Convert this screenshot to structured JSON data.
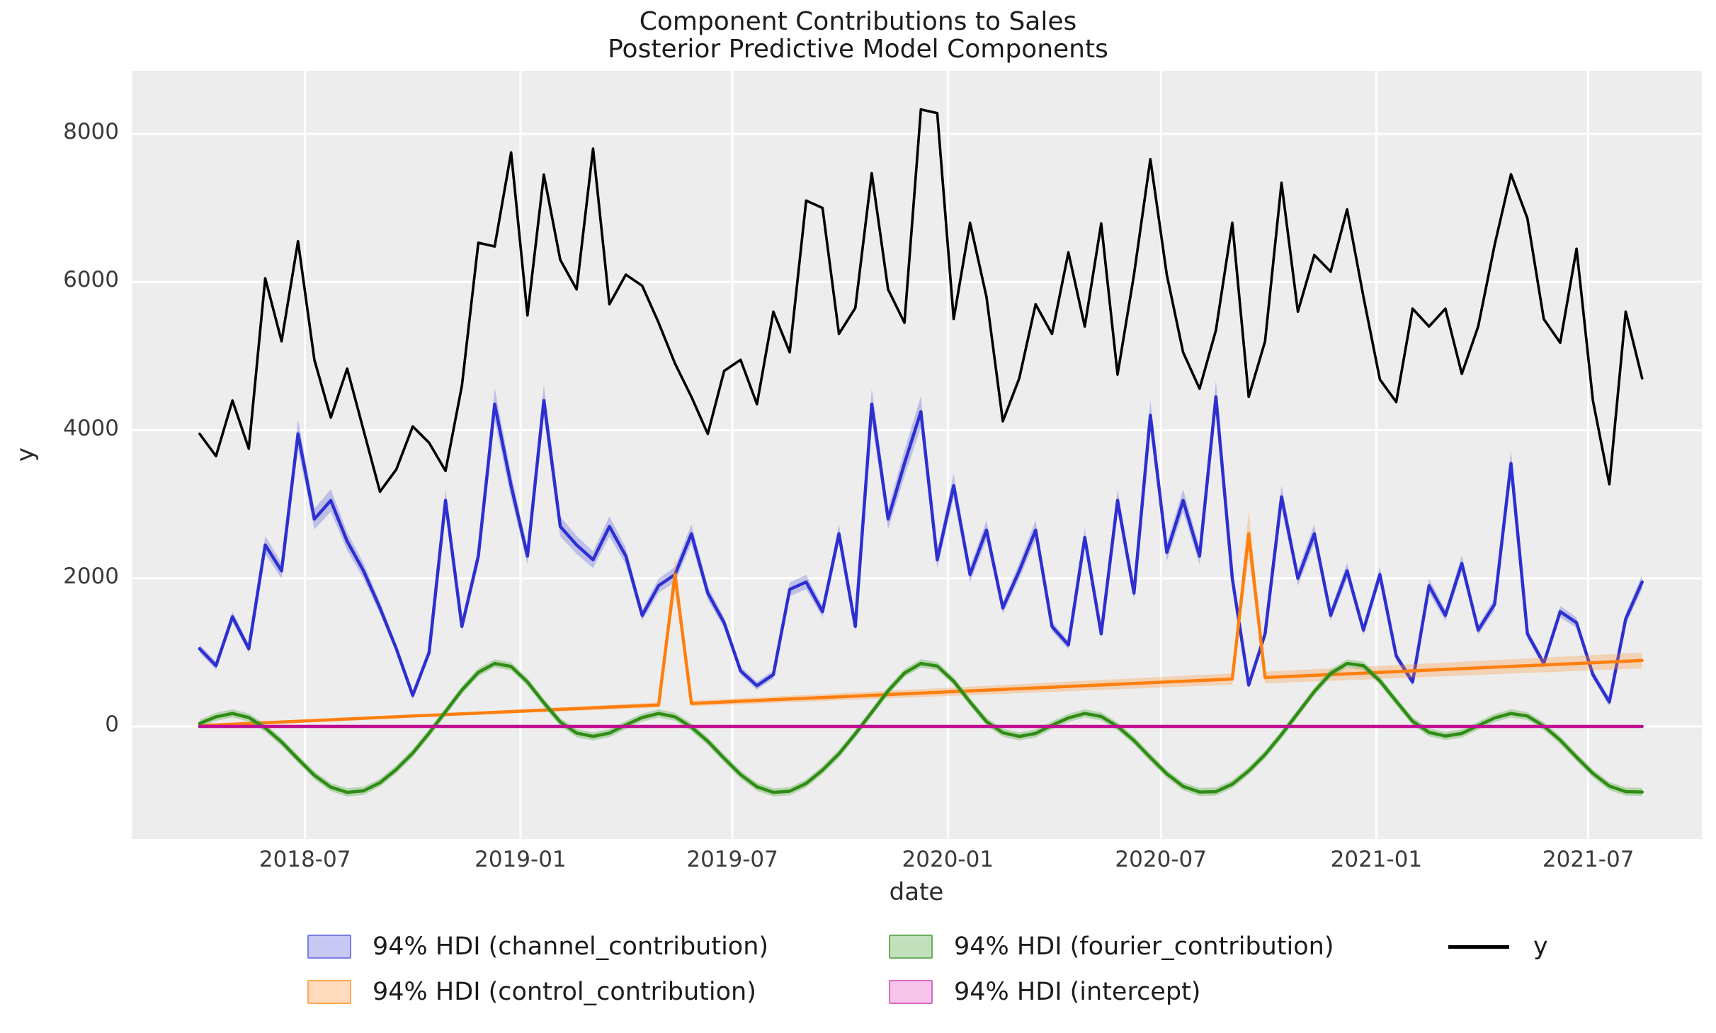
{
  "title": {
    "line1": "Component Contributions to Sales",
    "line2": "Posterior Predictive Model Components"
  },
  "axes": {
    "xlabel": "date",
    "ylabel": "y"
  },
  "colors": {
    "figure_background": "#ffffff",
    "plot_background": "#ededed",
    "gridline": "#ffffff",
    "y_line": "#000000",
    "channel_line": "#2d2fd1",
    "control_line": "#ff7f0e",
    "fourier_line": "#2f8c14",
    "intercept_line": "#c00d92",
    "text": "#1c1c1c"
  },
  "legend": {
    "entries": [
      {
        "label": "94% HDI (channel_contribution)",
        "marker": "patch",
        "fill": "rgba(80,85,220,0.32)",
        "edge": "rgba(80,85,220,0.65)"
      },
      {
        "label": "94% HDI (fourier_contribution)",
        "marker": "patch",
        "fill": "rgba(80,165,60,0.35)",
        "edge": "rgba(60,150,40,0.65)"
      },
      {
        "label": "y",
        "marker": "line",
        "color": "#000000"
      },
      {
        "label": "94% HDI (control_contribution)",
        "marker": "patch",
        "fill": "rgba(255,145,50,0.32)",
        "edge": "rgba(255,140,30,0.65)"
      },
      {
        "label": "94% HDI (intercept)",
        "marker": "patch",
        "fill": "rgba(225,90,195,0.35)",
        "edge": "rgba(210,60,180,0.65)"
      }
    ]
  },
  "chart_data": {
    "type": "line",
    "title": "Component Contributions to Sales",
    "subtitle": "Posterior Predictive Model Components",
    "xlabel": "date",
    "ylabel": "y",
    "grid": true,
    "background": "#ededed",
    "legend_position": "bottom",
    "x_domain": [
      "2018-02-03",
      "2021-10-06"
    ],
    "y_domain": [
      -1520,
      8852
    ],
    "y_ticks": [
      0,
      2000,
      4000,
      6000,
      8000
    ],
    "x_ticks": [
      {
        "label": "2018-07",
        "date": "2018-07-01"
      },
      {
        "label": "2019-01",
        "date": "2019-01-01"
      },
      {
        "label": "2019-07",
        "date": "2019-07-01"
      },
      {
        "label": "2020-01",
        "date": "2020-01-01"
      },
      {
        "label": "2020-07",
        "date": "2020-07-01"
      },
      {
        "label": "2021-01",
        "date": "2021-01-01"
      },
      {
        "label": "2021-07",
        "date": "2021-07-01"
      }
    ],
    "x": [
      "2018-04-02",
      "2018-04-16",
      "2018-04-30",
      "2018-05-14",
      "2018-05-28",
      "2018-06-11",
      "2018-06-25",
      "2018-07-09",
      "2018-07-23",
      "2018-08-06",
      "2018-08-20",
      "2018-09-03",
      "2018-09-17",
      "2018-10-01",
      "2018-10-15",
      "2018-10-29",
      "2018-11-12",
      "2018-11-26",
      "2018-12-10",
      "2018-12-24",
      "2019-01-07",
      "2019-01-21",
      "2019-02-04",
      "2019-02-18",
      "2019-03-04",
      "2019-03-18",
      "2019-04-01",
      "2019-04-15",
      "2019-04-29",
      "2019-05-13",
      "2019-05-27",
      "2019-06-10",
      "2019-06-24",
      "2019-07-08",
      "2019-07-22",
      "2019-08-05",
      "2019-08-19",
      "2019-09-02",
      "2019-09-16",
      "2019-09-30",
      "2019-10-14",
      "2019-10-28",
      "2019-11-11",
      "2019-11-25",
      "2019-12-09",
      "2019-12-23",
      "2020-01-06",
      "2020-01-20",
      "2020-02-03",
      "2020-02-17",
      "2020-03-02",
      "2020-03-16",
      "2020-03-30",
      "2020-04-13",
      "2020-04-27",
      "2020-05-11",
      "2020-05-25",
      "2020-06-08",
      "2020-06-22",
      "2020-07-06",
      "2020-07-20",
      "2020-08-03",
      "2020-08-17",
      "2020-08-31",
      "2020-09-14",
      "2020-09-28",
      "2020-10-12",
      "2020-10-26",
      "2020-11-09",
      "2020-11-23",
      "2020-12-07",
      "2020-12-21",
      "2021-01-04",
      "2021-01-18",
      "2021-02-01",
      "2021-02-15",
      "2021-03-01",
      "2021-03-15",
      "2021-03-29",
      "2021-04-12",
      "2021-04-26",
      "2021-05-10",
      "2021-05-24",
      "2021-06-07",
      "2021-06-21",
      "2021-07-05",
      "2021-07-19",
      "2021-08-02",
      "2021-08-16"
    ],
    "series": [
      {
        "name": "channel_contribution",
        "legend": "94% HDI (channel_contribution)",
        "color": "#2d2fd1",
        "width": 4.5,
        "band": {
          "mode": "fraction",
          "value": 0.05,
          "min": 55
        },
        "band_color": "rgba(80,85,220,0.30)",
        "values": [
          1050,
          820,
          1480,
          1050,
          2450,
          2100,
          3950,
          2800,
          3050,
          2500,
          2100,
          1600,
          1050,
          420,
          1000,
          3050,
          1350,
          2300,
          4350,
          3250,
          2300,
          4400,
          2700,
          2450,
          2250,
          2700,
          2300,
          1500,
          1900,
          2050,
          2600,
          1800,
          1400,
          750,
          550,
          700,
          1850,
          1950,
          1550,
          2600,
          1350,
          4350,
          2800,
          3550,
          4250,
          2250,
          3250,
          2050,
          2650,
          1600,
          2100,
          2650,
          1350,
          1100,
          2550,
          1250,
          3050,
          1800,
          4200,
          2350,
          3050,
          2300,
          4450,
          2000,
          560,
          1250,
          3100,
          2000,
          2600,
          1500,
          2100,
          1300,
          2050,
          950,
          600,
          1900,
          1500,
          2200,
          1300,
          1650,
          3550,
          1250,
          850,
          1550,
          1400,
          700,
          330,
          1450,
          1950
        ]
      },
      {
        "name": "control_contribution",
        "legend": "94% HDI (control_contribution)",
        "color": "#ff7f0e",
        "width": 4.5,
        "band": {
          "mode": "fraction",
          "value": 0.12,
          "min": 8
        },
        "band_color": "rgba(255,145,50,0.30)",
        "values": [
          10,
          20,
          30,
          40,
          50,
          60,
          70,
          80,
          90,
          100,
          110,
          120,
          130,
          140,
          150,
          160,
          170,
          180,
          190,
          200,
          210,
          220,
          230,
          240,
          250,
          260,
          270,
          280,
          290,
          2050,
          310,
          320,
          330,
          340,
          350,
          360,
          370,
          380,
          390,
          400,
          410,
          420,
          430,
          440,
          450,
          460,
          470,
          480,
          490,
          500,
          510,
          520,
          530,
          540,
          550,
          560,
          570,
          580,
          590,
          600,
          610,
          620,
          630,
          640,
          2600,
          660,
          670,
          680,
          690,
          700,
          710,
          720,
          730,
          740,
          750,
          760,
          770,
          780,
          790,
          800,
          810,
          820,
          830,
          840,
          850,
          860,
          870,
          880,
          890
        ]
      },
      {
        "name": "fourier_contribution",
        "legend": "94% HDI (fourier_contribution)",
        "color": "#2f8c14",
        "width": 4.5,
        "band": {
          "mode": "constant",
          "value": 55
        },
        "band_color": "rgba(80,165,60,0.35)",
        "values": [
          40,
          130,
          175,
          120,
          -20,
          -210,
          -440,
          -660,
          -820,
          -890,
          -870,
          -760,
          -580,
          -360,
          -90,
          200,
          490,
          730,
          850,
          810,
          600,
          320,
          60,
          -90,
          -135,
          -90,
          20,
          120,
          175,
          130,
          -10,
          -200,
          -430,
          -650,
          -815,
          -890,
          -875,
          -770,
          -590,
          -370,
          -100,
          190,
          480,
          720,
          850,
          815,
          610,
          330,
          65,
          -85,
          -135,
          -95,
          15,
          115,
          175,
          135,
          0,
          -190,
          -420,
          -640,
          -810,
          -885,
          -880,
          -780,
          -600,
          -380,
          -110,
          180,
          470,
          715,
          850,
          820,
          615,
          340,
          70,
          -80,
          -130,
          -95,
          10,
          115,
          175,
          140,
          5,
          -185,
          -415,
          -635,
          -805,
          -880,
          -885
        ]
      },
      {
        "name": "intercept",
        "legend": "94% HDI (intercept)",
        "color": "#c00d92",
        "width": 4.5,
        "band": {
          "mode": "constant",
          "value": 15
        },
        "band_color": "rgba(225,90,195,0.30)",
        "constant": 0
      },
      {
        "name": "y",
        "legend": "y",
        "color": "#000000",
        "width": 3.6,
        "values": [
          3950,
          3650,
          4400,
          3750,
          6050,
          5200,
          6550,
          4950,
          4170,
          4830,
          4000,
          3170,
          3470,
          4050,
          3830,
          3450,
          4600,
          6530,
          6480,
          7750,
          5550,
          7450,
          6300,
          5900,
          7800,
          5700,
          6100,
          5950,
          5450,
          4900,
          4450,
          3950,
          4800,
          4950,
          4350,
          5600,
          5050,
          7100,
          7000,
          5300,
          5650,
          7470,
          5900,
          5450,
          8330,
          8280,
          5500,
          6800,
          5800,
          4120,
          4700,
          5700,
          5300,
          6400,
          5400,
          6790,
          4750,
          6100,
          7660,
          6100,
          5050,
          4560,
          5350,
          6800,
          4450,
          5200,
          7340,
          5600,
          6365,
          6140,
          6980,
          5800,
          4685,
          4380,
          5640,
          5400,
          5640,
          4760,
          5400,
          6500,
          7455,
          6860,
          5500,
          5180,
          6450,
          4400,
          3270,
          5600,
          4700
        ]
      }
    ]
  }
}
